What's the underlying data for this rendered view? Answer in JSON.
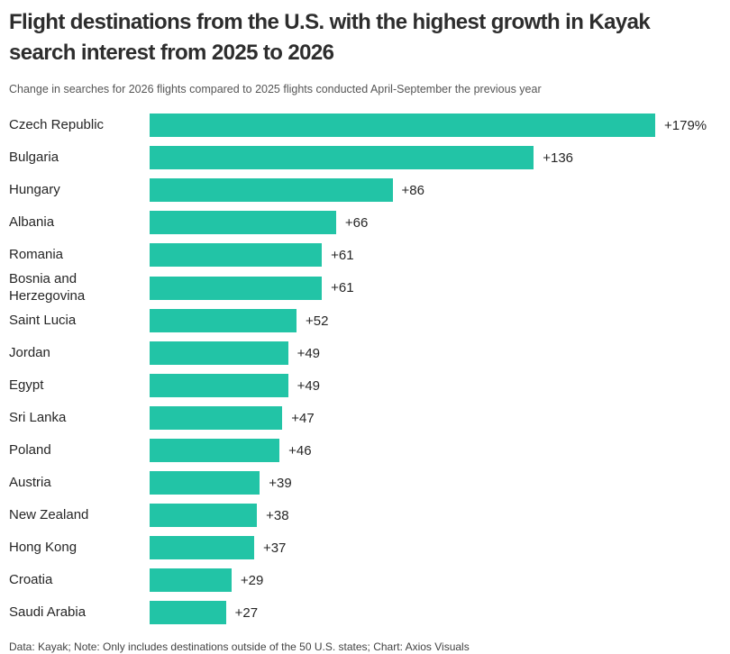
{
  "header": {
    "title": "Flight destinations from the U.S. with the highest growth in Kayak\nsearch interest from 2025 to 2026",
    "subtitle": "Change in searches for 2026 flights compared to 2025 flights conducted April-September the previous year"
  },
  "chart_data": {
    "type": "bar",
    "orientation": "horizontal",
    "title": "Flight destinations from the U.S. with the highest growth in Kayak search interest from 2025 to 2026",
    "subtitle": "Change in searches for 2026 flights compared to 2025 flights conducted April-September the previous year",
    "categories": [
      "Czech Republic",
      "Bulgaria",
      "Hungary",
      "Albania",
      "Romania",
      "Bosnia and Herzegovina",
      "Saint Lucia",
      "Jordan",
      "Egypt",
      "Sri Lanka",
      "Poland",
      "Austria",
      "New Zealand",
      "Hong Kong",
      "Croatia",
      "Saudi Arabia"
    ],
    "values": [
      179,
      136,
      86,
      66,
      61,
      61,
      52,
      49,
      49,
      47,
      46,
      39,
      38,
      37,
      29,
      27
    ],
    "value_labels": [
      "+179%",
      "+136",
      "+86",
      "+66",
      "+61",
      "+61",
      "+52",
      "+49",
      "+49",
      "+47",
      "+46",
      "+39",
      "+38",
      "+37",
      "+29",
      "+27"
    ],
    "unit": "percent",
    "xlim": [
      0,
      179
    ],
    "bar_color": "#22c4a6",
    "grid": false,
    "legend": false,
    "axis_ticks": false
  },
  "footer": {
    "note": "Data: Kayak; Note: Only includes destinations outside of the 50 U.S. states; Chart: Axios Visuals"
  }
}
